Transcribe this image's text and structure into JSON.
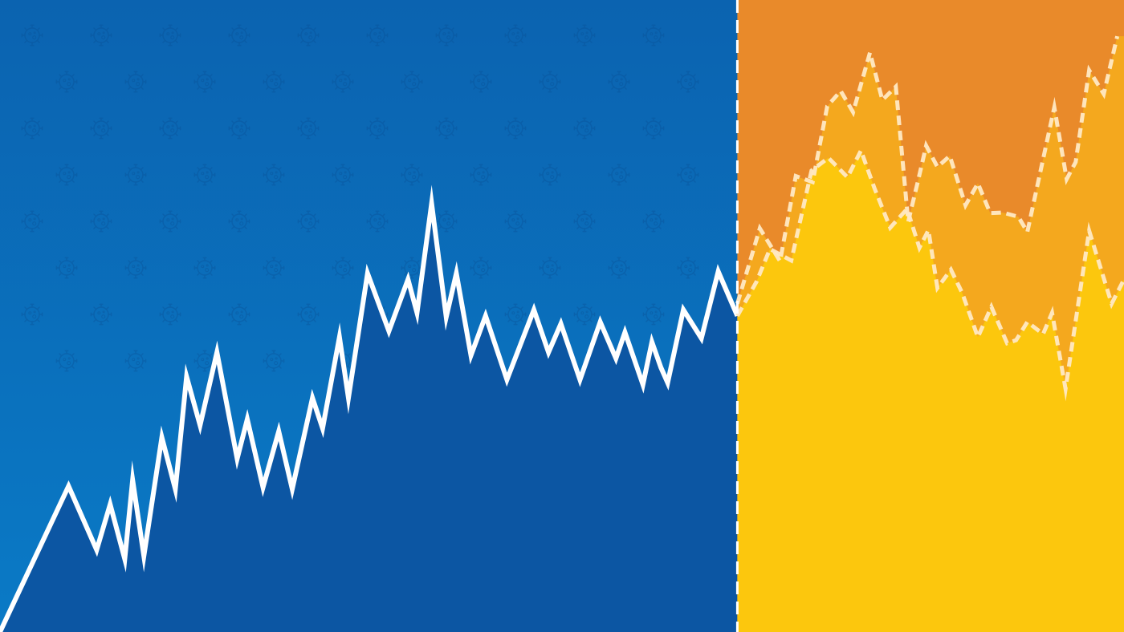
{
  "colors": {
    "history_bg_top": "#0b63b0",
    "history_bg_bottom": "#0a7ac6",
    "history_area": "#0c56a3",
    "history_line": "#ffffff",
    "projection_bg": "#e98a2a",
    "projection_upper_area": "#f4a81e",
    "projection_lower_area": "#fcc70d",
    "projection_line": "#ffe9c4",
    "divider": "#ffffff",
    "pattern_icon": "#0a4f92"
  },
  "background_pattern": {
    "icon": "virus-icon",
    "rows": 8,
    "opacity": 0.35
  },
  "chart_data": {
    "type": "line",
    "title": "",
    "xlabel": "",
    "ylabel": "",
    "xlim": [
      0,
      100
    ],
    "ylim": [
      0,
      100
    ],
    "grid": false,
    "legend": "none",
    "divider_x": 65.6,
    "series": [
      {
        "style": "solid",
        "fill": "area",
        "points": [
          [
            0,
            0
          ],
          [
            6.1,
            24
          ],
          [
            8.6,
            13.5
          ],
          [
            9.8,
            21
          ],
          [
            11.1,
            12
          ],
          [
            11.8,
            25
          ],
          [
            12.8,
            12.5
          ],
          [
            14.4,
            32
          ],
          [
            15.6,
            23.5
          ],
          [
            16.6,
            42
          ],
          [
            17.8,
            34
          ],
          [
            19.3,
            46
          ],
          [
            21.1,
            28.5
          ],
          [
            22,
            35
          ],
          [
            23.4,
            23.8
          ],
          [
            24.8,
            33
          ],
          [
            26,
            23.5
          ],
          [
            27.8,
            38.5
          ],
          [
            28.7,
            33.5
          ],
          [
            30.2,
            48.5
          ],
          [
            31,
            38.5
          ],
          [
            32.7,
            59
          ],
          [
            34.6,
            49.5
          ],
          [
            36.3,
            58
          ],
          [
            37.1,
            52.5
          ],
          [
            38.4,
            70.5
          ],
          [
            39.7,
            51.8
          ],
          [
            40.6,
            59
          ],
          [
            41.9,
            45.5
          ],
          [
            43.2,
            52
          ],
          [
            45.1,
            41.5
          ],
          [
            47.5,
            53
          ],
          [
            48.8,
            46
          ],
          [
            49.9,
            50.7
          ],
          [
            51.6,
            41.5
          ],
          [
            53.4,
            51
          ],
          [
            54.8,
            45
          ],
          [
            55.6,
            49.3
          ],
          [
            57.2,
            40.7
          ],
          [
            58,
            47.7
          ],
          [
            58.8,
            43.5
          ],
          [
            59.4,
            41
          ],
          [
            60.8,
            53
          ],
          [
            62.4,
            48.3
          ],
          [
            63.9,
            59.3
          ],
          [
            65.6,
            52
          ]
        ]
      },
      {
        "style": "dashed",
        "fill": "area",
        "points": [
          [
            65.6,
            54
          ],
          [
            67.6,
            66.4
          ],
          [
            69.4,
            61
          ],
          [
            70.8,
            75
          ],
          [
            72.3,
            74
          ],
          [
            73.6,
            86.5
          ],
          [
            74.8,
            89
          ],
          [
            75.9,
            85.5
          ],
          [
            77.4,
            95.3
          ],
          [
            78.5,
            87.5
          ],
          [
            79.7,
            89.7
          ],
          [
            80.8,
            67.5
          ],
          [
            81.7,
            74.4
          ],
          [
            82.4,
            80
          ],
          [
            83.4,
            76.5
          ],
          [
            84.5,
            78.3
          ],
          [
            85.9,
            70.2
          ],
          [
            87,
            73.8
          ],
          [
            88.1,
            68.9
          ],
          [
            89.2,
            69
          ],
          [
            90.6,
            68.3
          ],
          [
            91.4,
            65.8
          ],
          [
            93.8,
            86.3
          ],
          [
            94.9,
            74.5
          ],
          [
            95.7,
            77.3
          ],
          [
            96.9,
            92.4
          ],
          [
            98.2,
            88.5
          ],
          [
            99.4,
            98
          ]
        ]
      },
      {
        "style": "dashed",
        "fill": "area",
        "points": [
          [
            65.6,
            52
          ],
          [
            67.3,
            57.6
          ],
          [
            68.5,
            63
          ],
          [
            70.4,
            61.1
          ],
          [
            72.2,
            75.9
          ],
          [
            73.7,
            78
          ],
          [
            75.4,
            74.8
          ],
          [
            76.6,
            79.2
          ],
          [
            77.8,
            73
          ],
          [
            79.2,
            66.5
          ],
          [
            80.7,
            69.6
          ],
          [
            81.8,
            63.2
          ],
          [
            82.6,
            66.1
          ],
          [
            83.4,
            56.6
          ],
          [
            84.6,
            59.6
          ],
          [
            85.6,
            55.8
          ],
          [
            87,
            48.5
          ],
          [
            88.2,
            53.5
          ],
          [
            89.6,
            47.5
          ],
          [
            90.4,
            48
          ],
          [
            91.4,
            51
          ],
          [
            92.8,
            49
          ],
          [
            93.6,
            52.5
          ],
          [
            94.8,
            40
          ],
          [
            96.9,
            66
          ],
          [
            98.9,
            54
          ],
          [
            100,
            58
          ]
        ]
      }
    ]
  }
}
